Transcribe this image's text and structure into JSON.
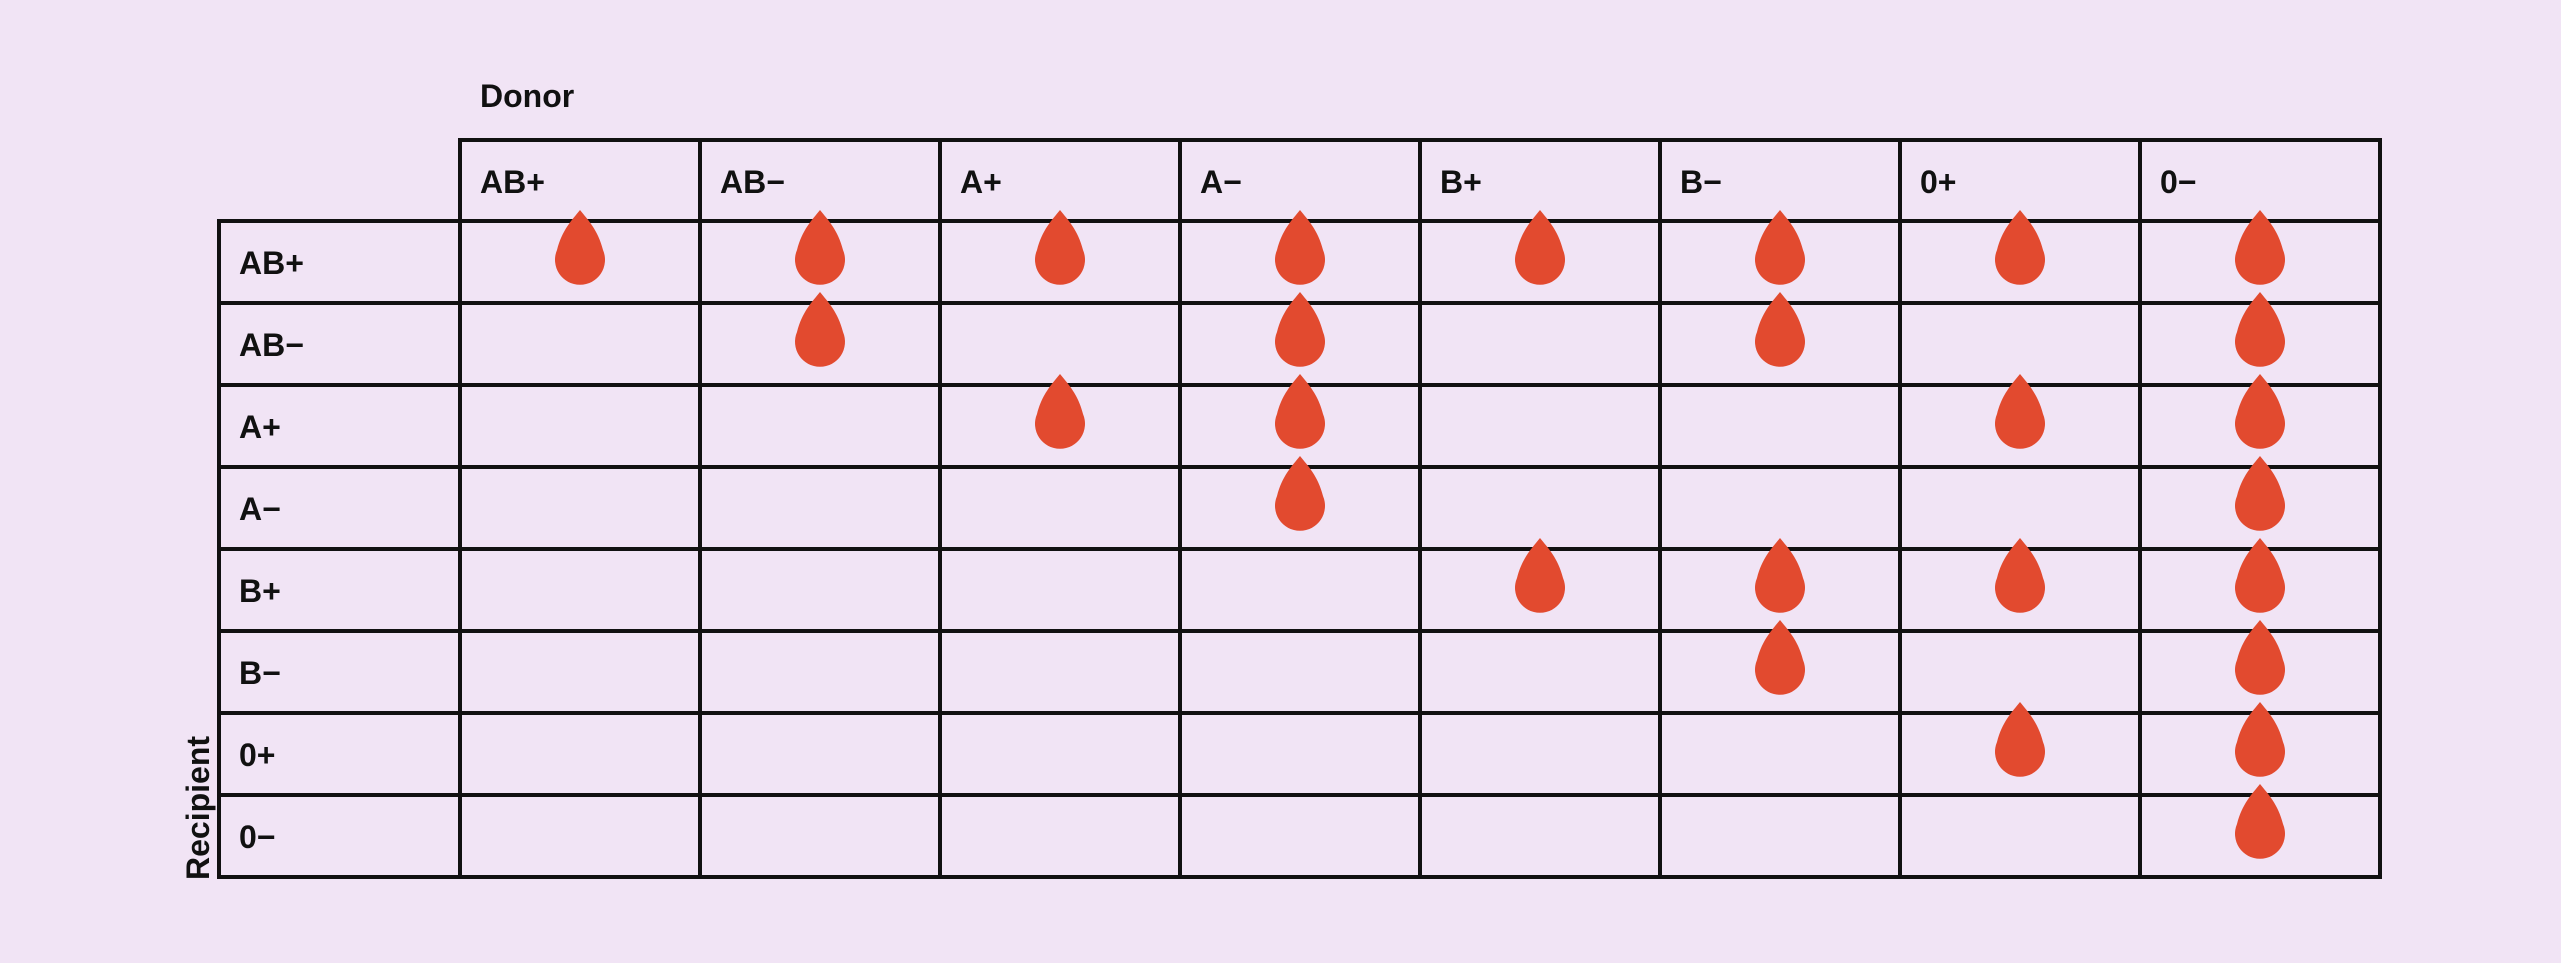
{
  "axis": {
    "donor_label": "Donor",
    "recipient_label": "Recipient"
  },
  "blood_types": [
    "AB+",
    "AB−",
    "A+",
    "A−",
    "B+",
    "B−",
    "0+",
    "0−"
  ],
  "compatibility": [
    [
      1,
      1,
      1,
      1,
      1,
      1,
      1,
      1
    ],
    [
      0,
      1,
      0,
      1,
      0,
      1,
      0,
      1
    ],
    [
      0,
      0,
      1,
      1,
      0,
      0,
      1,
      1
    ],
    [
      0,
      0,
      0,
      1,
      0,
      0,
      0,
      1
    ],
    [
      0,
      0,
      0,
      0,
      1,
      1,
      1,
      1
    ],
    [
      0,
      0,
      0,
      0,
      0,
      1,
      0,
      1
    ],
    [
      0,
      0,
      0,
      0,
      0,
      0,
      1,
      1
    ],
    [
      0,
      0,
      0,
      0,
      0,
      0,
      0,
      1
    ]
  ],
  "icon": "blood-drop-icon",
  "colors": {
    "background": "#f1e4f5",
    "drop": "#e24a2f",
    "grid_line": "#111111"
  }
}
